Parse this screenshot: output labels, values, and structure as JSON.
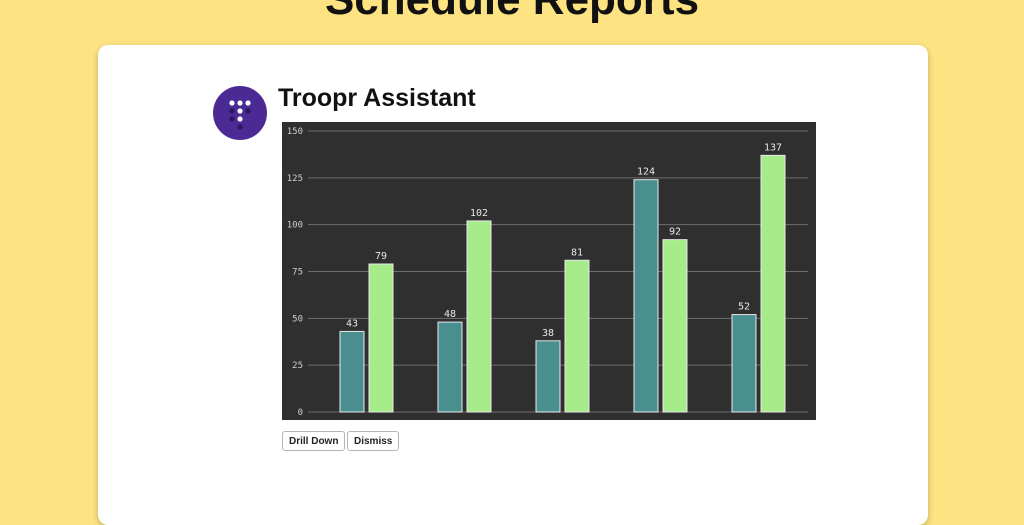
{
  "page": {
    "title": "Schedule Reports"
  },
  "message": {
    "sender": "Troopr Assistant",
    "avatar_icon": "troopr-logo-icon",
    "avatar_color": "#4b2a94"
  },
  "actions": {
    "drill_down_label": "Drill Down",
    "dismiss_label": "Dismiss"
  },
  "chart_data": {
    "type": "bar",
    "categories": [
      "",
      "",
      "",
      "",
      ""
    ],
    "series": [
      {
        "values": [
          43,
          48,
          38,
          124,
          52
        ],
        "color": "#4a8f8f"
      },
      {
        "values": [
          79,
          102,
          81,
          92,
          137
        ],
        "color": "#a6ec8a"
      }
    ],
    "yticks": [
      0,
      25,
      50,
      75,
      100,
      125,
      150
    ],
    "ylim": [
      0,
      150
    ],
    "grid": true,
    "background": "#2f2f2f",
    "title": "",
    "xlabel": "",
    "ylabel": ""
  }
}
